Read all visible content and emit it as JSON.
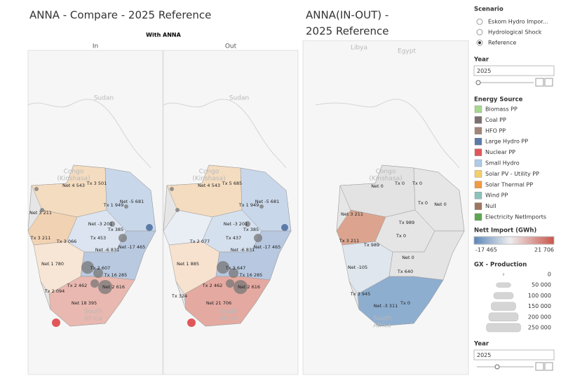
{
  "dashboard": {
    "title_left": "ANNA - Compare  - 2025  Reference",
    "subtitle_left": "With ANNA",
    "panels": [
      "In",
      "Out"
    ],
    "title_right": [
      "ANNA(IN-OUT) -",
      "2025  Reference"
    ],
    "maps": [
      {
        "base": [
          "Sudan",
          "Congo",
          "(Kinshasa)",
          "South",
          "Africa"
        ],
        "labels": [
          "Net 4 543",
          "Tx 3 501",
          "Net -5 681",
          "Tx 1 949",
          "Net 3 211",
          "Tx 3 211",
          "Tx 3 066",
          "Net -3 201",
          "Tx 385",
          "Tx 453",
          "Net -6 831",
          "Net -17 465",
          "Net 1 780",
          "Tx 2 607",
          "Tx 16 285",
          "Tx 2 462",
          "Net 2 616",
          "Tx 2 094",
          "Net 18 395"
        ]
      },
      {
        "base": [
          "Sudan",
          "Congo",
          "(Kinshasa)",
          "South",
          "Africa"
        ],
        "labels": [
          "Net 4 543",
          "Tx 5 685",
          "Net -5 681",
          "Tx 1 949",
          "Net -3 201",
          "Tx 385",
          "Tx 2 077",
          "Tx 437",
          "Net -6 831",
          "Net -17 465",
          "Net 1 885",
          "Tx 3 647",
          "Tx 16 285",
          "Tx 2 462",
          "Net 2 616",
          "Tx 324",
          "Net 21 706"
        ]
      },
      {
        "base": [
          "Libya",
          "Egypt",
          "Congo",
          "(Kinshasa)",
          "South",
          "Africa"
        ],
        "labels": [
          "Net 0",
          "Tx 0",
          "Tx 0",
          "Net 0",
          "Tx 0",
          "Net 3 211",
          "Tx 3 211",
          "Tx 989",
          "Tx 989",
          "Tx 0",
          "Net 0",
          "Net -105",
          "Tx 640",
          "Tx 3 945",
          "Net -3 311",
          "Tx 0"
        ]
      }
    ],
    "filters": {
      "scenario": {
        "title": "Scenario",
        "options": [
          "Eskom Hydro Impor...",
          "Hydrological Shock",
          "Reference"
        ]
      },
      "year": {
        "title": "Year",
        "value": "2025"
      },
      "energy_source": {
        "title": "Energy Source",
        "items": [
          {
            "name": "Biomass PP",
            "color": "#a6d88f"
          },
          {
            "name": "Coal PP",
            "color": "#7b6f70"
          },
          {
            "name": "HFO PP",
            "color": "#a3857a"
          },
          {
            "name": "Large Hydro PP",
            "color": "#5b7aa8"
          },
          {
            "name": "Nuclear PP",
            "color": "#e15759"
          },
          {
            "name": "Small Hydro",
            "color": "#aecbe8"
          },
          {
            "name": "Solar PV - Utility PP",
            "color": "#f3cf6a"
          },
          {
            "name": "Solar Thermal PP",
            "color": "#f29a43"
          },
          {
            "name": "Wind PP",
            "color": "#8cc2bc"
          },
          {
            "name": "Null",
            "color": "#9d7660"
          },
          {
            "name": "Electricity NetImports",
            "color": "#5ca64f"
          }
        ]
      },
      "nett_import": {
        "title": "Nett Import (GWh)",
        "min": "-17 465",
        "max": "21 706"
      },
      "gx_production": {
        "title": "GX - Production",
        "sizes": [
          "0",
          "50 000",
          "100 000",
          "150 000",
          "200 000",
          "250 000"
        ]
      },
      "year2": {
        "title": "Year",
        "value": "2025"
      }
    }
  }
}
